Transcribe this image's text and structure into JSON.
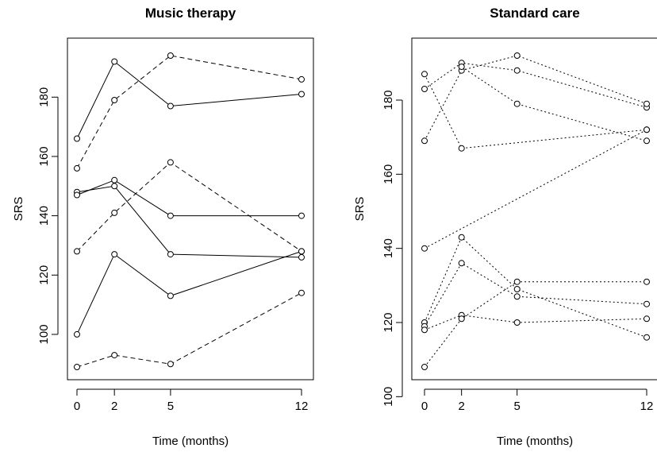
{
  "chart_data": [
    {
      "type": "line",
      "title": "Music therapy",
      "xlabel": "Time (months)",
      "ylabel": "SRS",
      "x": [
        0,
        2,
        5,
        12
      ],
      "x_ticks": [
        "0",
        "2",
        "5",
        "12"
      ],
      "y_ticks": [
        "100",
        "120",
        "140",
        "160",
        "180"
      ],
      "xlim": [
        0,
        12
      ],
      "ylim": [
        89,
        194
      ],
      "grid": false,
      "legend": "none",
      "series": [
        {
          "style": "solid",
          "values": [
            166,
            192,
            177,
            181
          ]
        },
        {
          "style": "dashed",
          "values": [
            156,
            179,
            194,
            186
          ]
        },
        {
          "style": "solid",
          "values": [
            148,
            150,
            127,
            126
          ]
        },
        {
          "style": "solid",
          "values": [
            147,
            152,
            140,
            140
          ]
        },
        {
          "style": "dashed",
          "values": [
            128,
            141,
            158,
            128
          ]
        },
        {
          "style": "solid",
          "values": [
            100,
            127,
            113,
            128
          ]
        },
        {
          "style": "dashed",
          "values": [
            89,
            93,
            90,
            114
          ]
        }
      ]
    },
    {
      "type": "line",
      "title": "Standard care",
      "xlabel": "Time (months)",
      "ylabel": "SRS",
      "x": [
        0,
        2,
        5,
        12
      ],
      "x_ticks": [
        "0",
        "2",
        "5",
        "12"
      ],
      "y_ticks": [
        "100",
        "120",
        "140",
        "160",
        "180"
      ],
      "xlim": [
        0,
        12
      ],
      "ylim": [
        108,
        192
      ],
      "grid": false,
      "legend": "none",
      "series": [
        {
          "style": "dotted",
          "values": [
            187,
            167,
            null,
            172
          ]
        },
        {
          "style": "dotted",
          "values": [
            183,
            190,
            188,
            178
          ]
        },
        {
          "style": "dotted",
          "values": [
            169,
            188,
            192,
            179
          ]
        },
        {
          "style": "dotted",
          "values": [
            null,
            189,
            179,
            169
          ]
        },
        {
          "style": "dotted",
          "values": [
            140,
            null,
            null,
            172
          ]
        },
        {
          "style": "dotted",
          "values": [
            120,
            143,
            129,
            116
          ]
        },
        {
          "style": "dotted",
          "values": [
            119,
            136,
            127,
            125
          ]
        },
        {
          "style": "dotted",
          "values": [
            118,
            122,
            120,
            121
          ]
        },
        {
          "style": "dotted",
          "values": [
            108,
            121,
            131,
            131
          ]
        }
      ]
    }
  ]
}
